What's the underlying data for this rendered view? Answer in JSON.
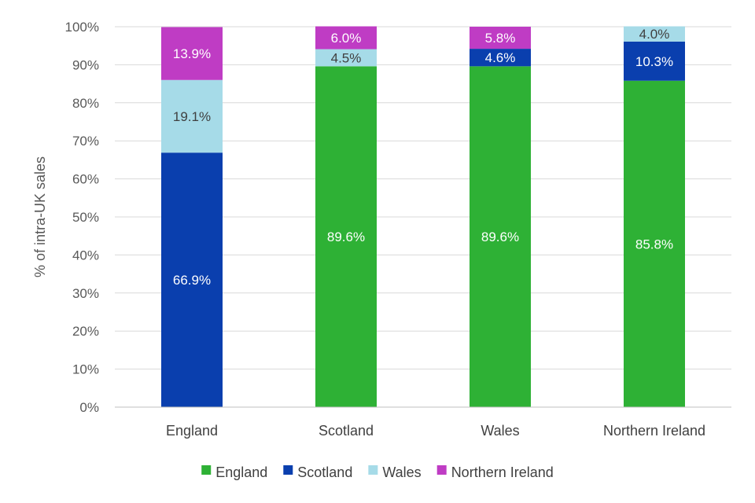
{
  "chart_data": {
    "type": "bar",
    "stacked": true,
    "title": "",
    "xlabel": "",
    "ylabel": "% of intra-UK sales",
    "ylim": [
      0,
      100
    ],
    "yticks": [
      "0%",
      "10%",
      "20%",
      "30%",
      "40%",
      "50%",
      "60%",
      "70%",
      "80%",
      "90%",
      "100%"
    ],
    "grid": true,
    "legend_position": "bottom",
    "categories": [
      "England",
      "Scotland",
      "Wales",
      "Northern Ireland"
    ],
    "series": [
      {
        "name": "England",
        "color": "#2eb135",
        "values": [
          0,
          89.6,
          89.6,
          85.8
        ],
        "labels": [
          "",
          "89.6%",
          "89.6%",
          "85.8%"
        ],
        "label_color": "#ffffff"
      },
      {
        "name": "Scotland",
        "color": "#0a3fae",
        "values": [
          66.9,
          0,
          4.6,
          10.3
        ],
        "labels": [
          "66.9%",
          "",
          "4.6%",
          "10.3%"
        ],
        "label_color": "#ffffff"
      },
      {
        "name": "Wales",
        "color": "#a6dbe8",
        "values": [
          19.1,
          4.5,
          0,
          4.0
        ],
        "labels": [
          "19.1%",
          "4.5%",
          "",
          "4.0%"
        ],
        "label_color": "#404040"
      },
      {
        "name": "Northern Ireland",
        "color": "#bf3cc4",
        "values": [
          13.9,
          6.0,
          5.8,
          0
        ],
        "labels": [
          "13.9%",
          "6.0%",
          "5.8%",
          ""
        ],
        "label_color": "#ffffff"
      }
    ]
  }
}
